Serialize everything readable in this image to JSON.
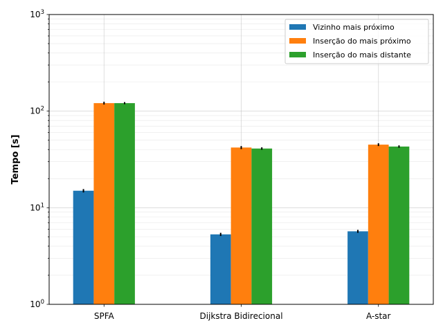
{
  "chart_data": {
    "type": "bar",
    "ylabel": "Tempo [s]",
    "xlabel": "",
    "yscale": "log",
    "ylim": [
      1,
      1000
    ],
    "grid": true,
    "legend_position": "top-right",
    "categories": [
      "SPFA",
      "Dijkstra Bidirecional",
      "A-star"
    ],
    "y_tick_labels": [
      {
        "value": 1,
        "base": "10",
        "exp": "0"
      },
      {
        "value": 10,
        "base": "10",
        "exp": "1"
      },
      {
        "value": 100,
        "base": "10",
        "exp": "2"
      },
      {
        "value": 1000,
        "base": "10",
        "exp": "3"
      }
    ],
    "series": [
      {
        "name": "Vizinho mais próximo",
        "color": "#1f77b4",
        "values": [
          15.0,
          5.3,
          5.7
        ],
        "errors": [
          0.6,
          0.2,
          0.2
        ]
      },
      {
        "name": "Inserção do mais próximo",
        "color": "#ff7f0e",
        "values": [
          121,
          42,
          45
        ],
        "errors": [
          4,
          1.5,
          1.5
        ]
      },
      {
        "name": "Inserção do mais distante",
        "color": "#2ca02c",
        "values": [
          121,
          41,
          43
        ],
        "errors": [
          3,
          1.2,
          1.2
        ]
      }
    ]
  }
}
